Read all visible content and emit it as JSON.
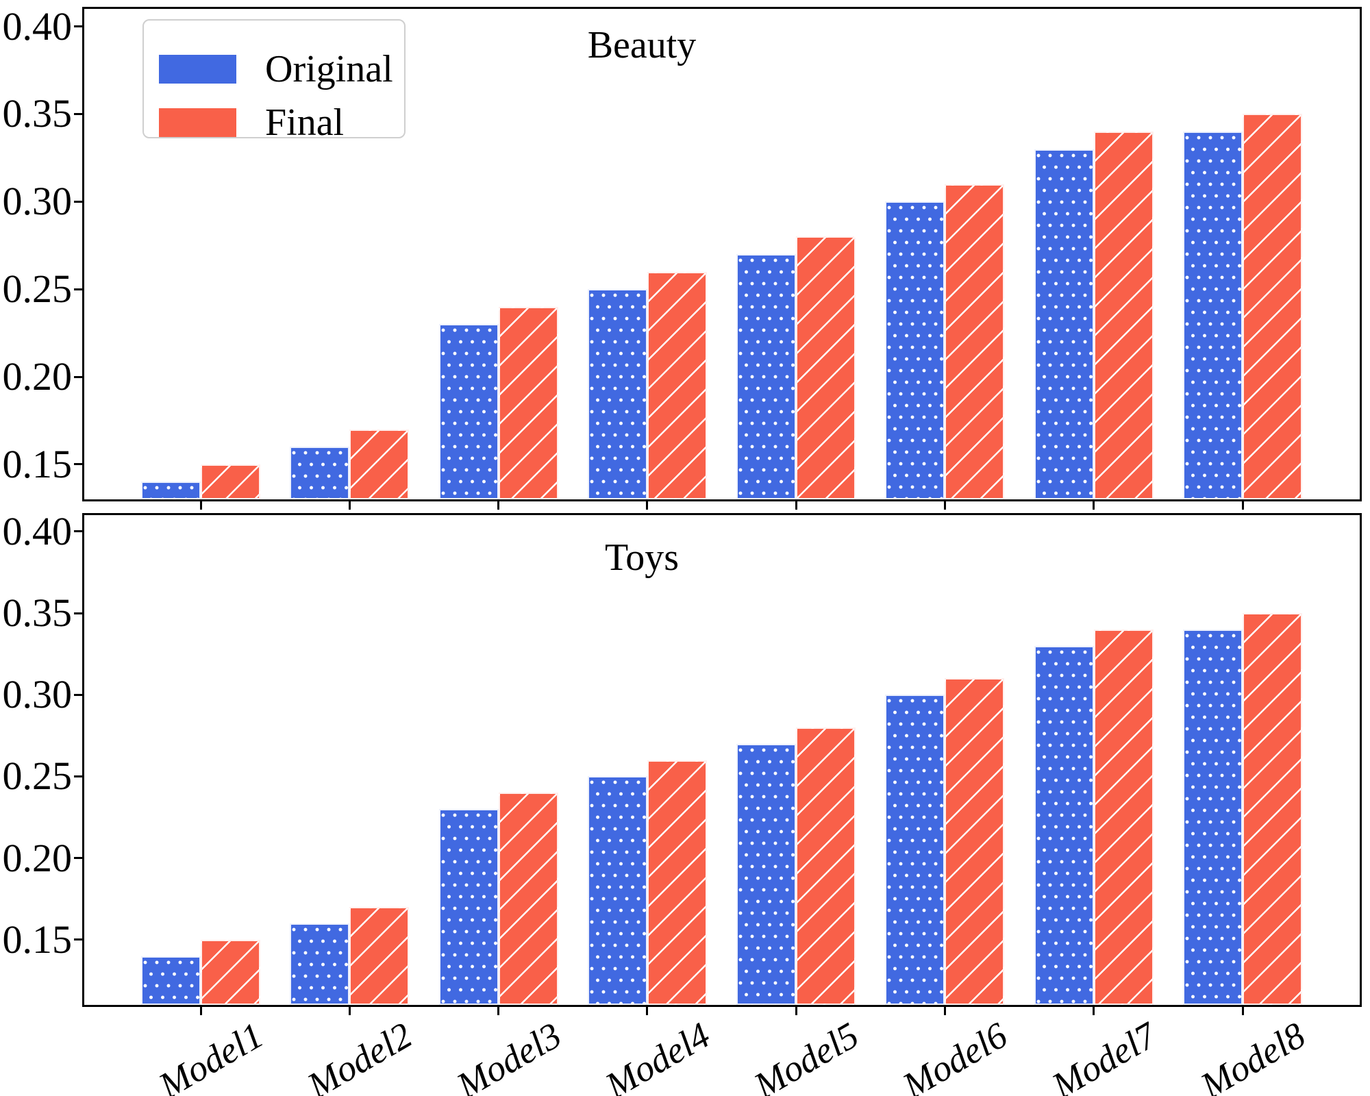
{
  "figure": {
    "background": "#ffffff"
  },
  "legend": {
    "position": "upper-left",
    "items": [
      {
        "label": "Original",
        "color": "#4169E1",
        "pattern": "dots"
      },
      {
        "label": "Final",
        "color": "#F96049",
        "pattern": "diagonal-stripes"
      }
    ]
  },
  "chart_data": [
    {
      "type": "bar",
      "title": "Beauty",
      "categories": [
        "Model1",
        "Model2",
        "Model3",
        "Model4",
        "Model5",
        "Model6",
        "Model7",
        "Model8"
      ],
      "series": [
        {
          "name": "Original",
          "color": "#4169E1",
          "hatch": "dots",
          "values": [
            0.14,
            0.16,
            0.23,
            0.25,
            0.27,
            0.3,
            0.33,
            0.34
          ]
        },
        {
          "name": "Final",
          "color": "#F96049",
          "hatch": "diagonal",
          "values": [
            0.15,
            0.17,
            0.24,
            0.26,
            0.28,
            0.31,
            0.34,
            0.35
          ]
        }
      ],
      "ylim": [
        0.13,
        0.41
      ],
      "ytick_labels": [
        "0.40",
        "0.35",
        "0.30",
        "0.25",
        "0.20",
        "0.15"
      ],
      "grid": false,
      "show_x_tick_labels": false,
      "legend_shown": true
    },
    {
      "type": "bar",
      "title": "Toys",
      "categories": [
        "Model1",
        "Model2",
        "Model3",
        "Model4",
        "Model5",
        "Model6",
        "Model7",
        "Model8"
      ],
      "series": [
        {
          "name": "Original",
          "color": "#4169E1",
          "hatch": "dots",
          "values": [
            0.14,
            0.16,
            0.23,
            0.25,
            0.27,
            0.3,
            0.33,
            0.34
          ]
        },
        {
          "name": "Final",
          "color": "#F96049",
          "hatch": "diagonal",
          "values": [
            0.15,
            0.17,
            0.24,
            0.26,
            0.28,
            0.31,
            0.34,
            0.35
          ]
        }
      ],
      "ylim": [
        0.11,
        0.41
      ],
      "ytick_labels": [
        "0.40",
        "0.35",
        "0.30",
        "0.25",
        "0.20",
        "0.15"
      ],
      "grid": false,
      "show_x_tick_labels": true,
      "legend_shown": false
    }
  ]
}
